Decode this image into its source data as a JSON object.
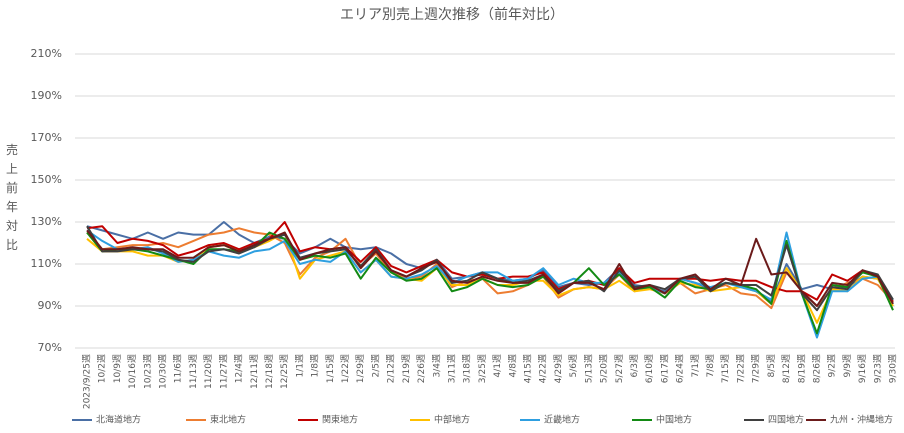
{
  "chart_data": {
    "type": "line",
    "title": "エリア別売上週次推移（前年対比）",
    "y_axis_label": "売上前年対比",
    "categories": [
      "2023/9/25週",
      "10/2週",
      "10/9週",
      "10/16週",
      "10/23週",
      "10/30週",
      "11/6週",
      "11/13週",
      "11/20週",
      "11/27週",
      "12/4週",
      "12/11週",
      "12/18週",
      "12/25週",
      "1/1週",
      "1/8週",
      "1/15週",
      "1/22週",
      "1/29週",
      "2/5週",
      "2/12週",
      "2/19週",
      "2/26週",
      "3/4週",
      "3/11週",
      "3/18週",
      "3/25週",
      "4/1週",
      "4/8週",
      "4/15週",
      "4/22週",
      "4/29週",
      "5/6週",
      "5/13週",
      "5/20週",
      "5/27週",
      "6/3週",
      "6/10週",
      "6/17週",
      "6/24週",
      "7/1週",
      "7/8週",
      "7/15週",
      "7/22週",
      "7/29週",
      "8/5週",
      "8/12週",
      "8/19週",
      "8/26週",
      "9/2週",
      "9/9週",
      "9/16週",
      "9/23週",
      "9/30週"
    ],
    "ylim": [
      70,
      210
    ],
    "yticks": [
      {
        "value": 70,
        "label": "70%"
      },
      {
        "value": 90,
        "label": "90%"
      },
      {
        "value": 110,
        "label": "110%"
      },
      {
        "value": 130,
        "label": "130%"
      },
      {
        "value": 150,
        "label": "150%"
      },
      {
        "value": 170,
        "label": "170%"
      },
      {
        "value": 190,
        "label": "190%"
      },
      {
        "value": 210,
        "label": "210%"
      }
    ],
    "grid": true,
    "legend": "bottom",
    "series": [
      {
        "name": "北海道地方",
        "color": "#4a6fa5",
        "values": [
          128,
          126,
          124,
          122,
          125,
          122,
          125,
          124,
          124,
          130,
          124,
          120,
          123,
          122,
          115,
          118,
          122,
          118,
          117,
          118,
          115,
          110,
          108,
          112,
          103,
          104,
          106,
          103,
          102,
          103,
          107,
          99,
          101,
          100,
          101,
          108,
          100,
          99,
          97,
          103,
          101,
          98,
          101,
          100,
          97,
          92,
          110,
          98,
          100,
          98,
          99,
          104,
          103,
          91
        ]
      },
      {
        "name": "東北地方",
        "color": "#ed7d31",
        "values": [
          125,
          117,
          118,
          119,
          119,
          120,
          118,
          121,
          124,
          125,
          127,
          125,
          124,
          120,
          105,
          113,
          116,
          122,
          109,
          115,
          106,
          103,
          104,
          110,
          99,
          102,
          103,
          96,
          97,
          100,
          104,
          94,
          98,
          99,
          98,
          105,
          97,
          99,
          96,
          101,
          96,
          98,
          100,
          96,
          95,
          89,
          106,
          97,
          90,
          98,
          101,
          103,
          100,
          92
        ]
      },
      {
        "name": "関東地方",
        "color": "#c00000",
        "values": [
          127,
          128,
          120,
          122,
          121,
          119,
          114,
          116,
          119,
          120,
          117,
          120,
          122,
          130,
          116,
          118,
          117,
          118,
          111,
          118,
          109,
          106,
          109,
          112,
          106,
          104,
          105,
          103,
          104,
          104,
          106,
          98,
          101,
          102,
          100,
          108,
          101,
          103,
          103,
          103,
          103,
          102,
          103,
          102,
          102,
          99,
          97,
          97,
          93,
          105,
          102,
          107,
          104,
          92
        ]
      },
      {
        "name": "中部地方",
        "color": "#ffc000",
        "values": [
          122,
          116,
          116,
          116,
          114,
          114,
          111,
          112,
          118,
          119,
          116,
          118,
          121,
          125,
          103,
          112,
          114,
          116,
          106,
          112,
          104,
          103,
          102,
          108,
          100,
          100,
          103,
          100,
          100,
          102,
          102,
          95,
          98,
          99,
          98,
          102,
          97,
          98,
          96,
          101,
          100,
          97,
          98,
          99,
          97,
          91,
          108,
          97,
          82,
          98,
          97,
          104,
          103,
          90
        ]
      },
      {
        "name": "近畿地方",
        "color": "#2e9fe0",
        "values": [
          126,
          121,
          117,
          117,
          118,
          115,
          111,
          112,
          116,
          114,
          113,
          116,
          117,
          121,
          110,
          112,
          111,
          116,
          106,
          112,
          104,
          103,
          105,
          109,
          101,
          104,
          106,
          106,
          102,
          103,
          108,
          100,
          103,
          101,
          101,
          106,
          98,
          99,
          96,
          103,
          101,
          99,
          101,
          99,
          97,
          93,
          125,
          96,
          75,
          97,
          97,
          103,
          104,
          93
        ]
      },
      {
        "name": "中国地方",
        "color": "#138a14",
        "values": [
          125,
          116,
          117,
          117,
          116,
          114,
          112,
          110,
          117,
          117,
          116,
          118,
          125,
          122,
          112,
          114,
          113,
          115,
          103,
          113,
          106,
          102,
          103,
          108,
          97,
          99,
          103,
          100,
          99,
          100,
          104,
          97,
          101,
          108,
          100,
          105,
          98,
          99,
          94,
          102,
          99,
          98,
          101,
          100,
          98,
          91,
          121,
          96,
          77,
          100,
          99,
          106,
          104,
          88
        ]
      },
      {
        "name": "四国地方",
        "color": "#3f3f3f",
        "values": [
          128,
          116,
          116,
          117,
          117,
          116,
          112,
          111,
          116,
          117,
          115,
          118,
          122,
          124,
          113,
          115,
          116,
          117,
          109,
          117,
          107,
          104,
          107,
          112,
          101,
          102,
          106,
          103,
          101,
          102,
          105,
          97,
          101,
          102,
          97,
          107,
          99,
          100,
          98,
          103,
          104,
          97,
          101,
          100,
          100,
          95,
          119,
          96,
          88,
          99,
          98,
          107,
          105,
          93
        ]
      },
      {
        "name": "九州・沖縄地方",
        "color": "#6b1b1b",
        "values": [
          126,
          117,
          117,
          118,
          117,
          117,
          113,
          113,
          118,
          119,
          116,
          119,
          122,
          125,
          112,
          115,
          117,
          118,
          108,
          116,
          107,
          104,
          108,
          111,
          102,
          101,
          104,
          102,
          101,
          101,
          105,
          96,
          101,
          101,
          98,
          110,
          98,
          100,
          96,
          103,
          105,
          98,
          103,
          100,
          122,
          105,
          106,
          97,
          90,
          101,
          100,
          107,
          104,
          91
        ]
      }
    ]
  }
}
